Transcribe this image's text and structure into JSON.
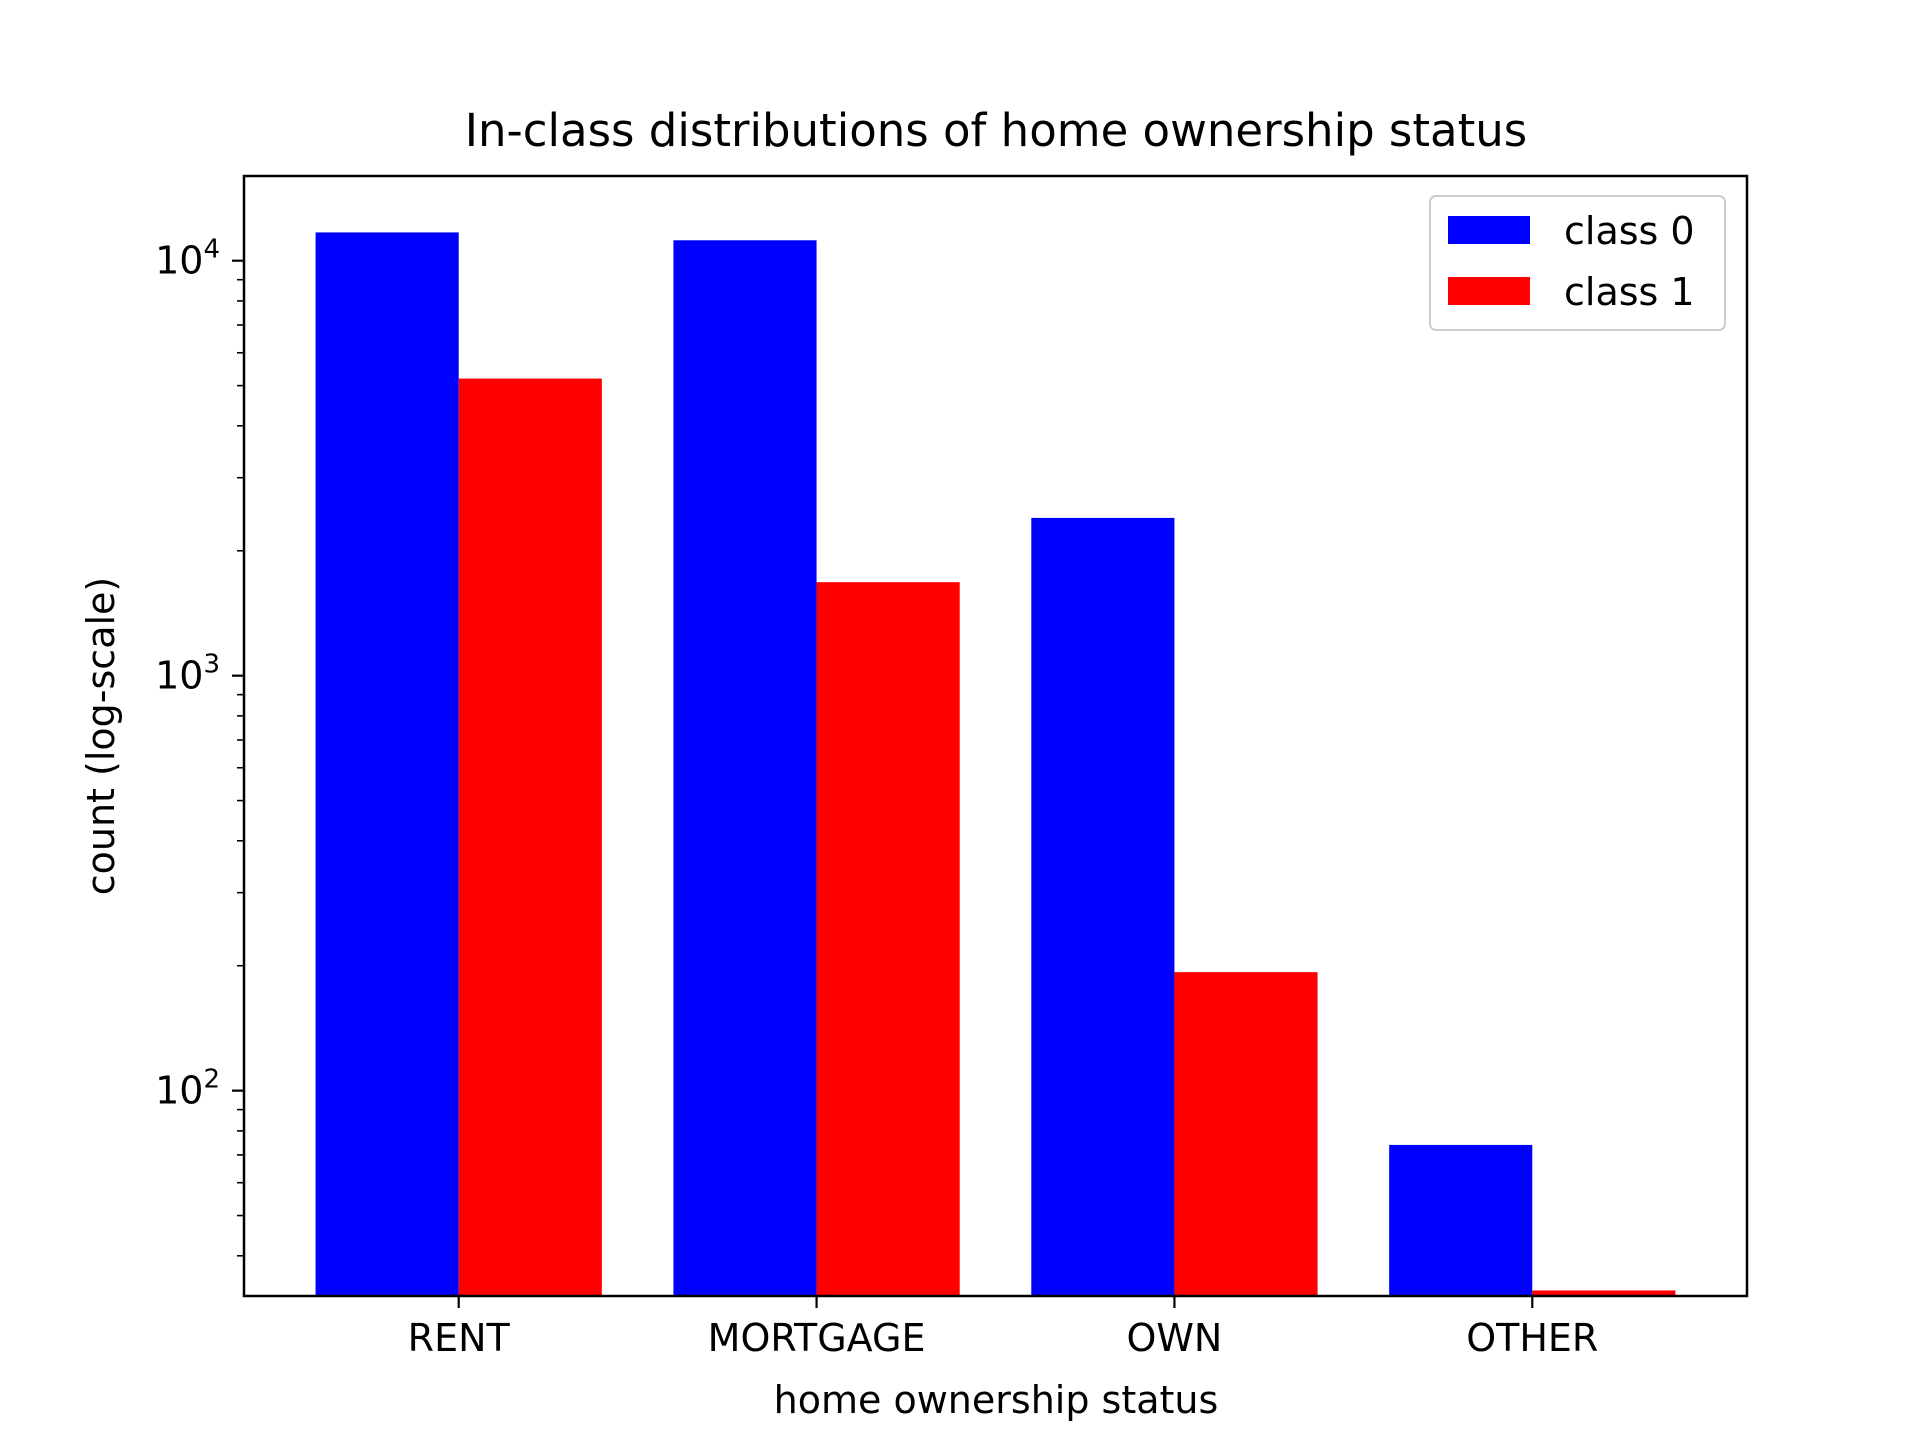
{
  "chart_data": {
    "type": "bar",
    "title": "In-class distributions of home ownership status",
    "xlabel": "home ownership status",
    "ylabel": "count (log-scale)",
    "yscale": "log",
    "ylim": [
      32,
      16000
    ],
    "categories": [
      "RENT",
      "MORTGAGE",
      "OWN",
      "OTHER"
    ],
    "series": [
      {
        "name": "class 0",
        "color": "#0000ff",
        "values": [
          11700,
          11200,
          2400,
          74
        ]
      },
      {
        "name": "class 1",
        "color": "#ff0000",
        "values": [
          5200,
          1680,
          193,
          33
        ]
      }
    ],
    "yticks": [
      {
        "value": 100,
        "base": "10",
        "exp": "2"
      },
      {
        "value": 1000,
        "base": "10",
        "exp": "3"
      },
      {
        "value": 10000,
        "base": "10",
        "exp": "4"
      }
    ],
    "legend": {
      "position": "top-right"
    },
    "grid": false
  }
}
